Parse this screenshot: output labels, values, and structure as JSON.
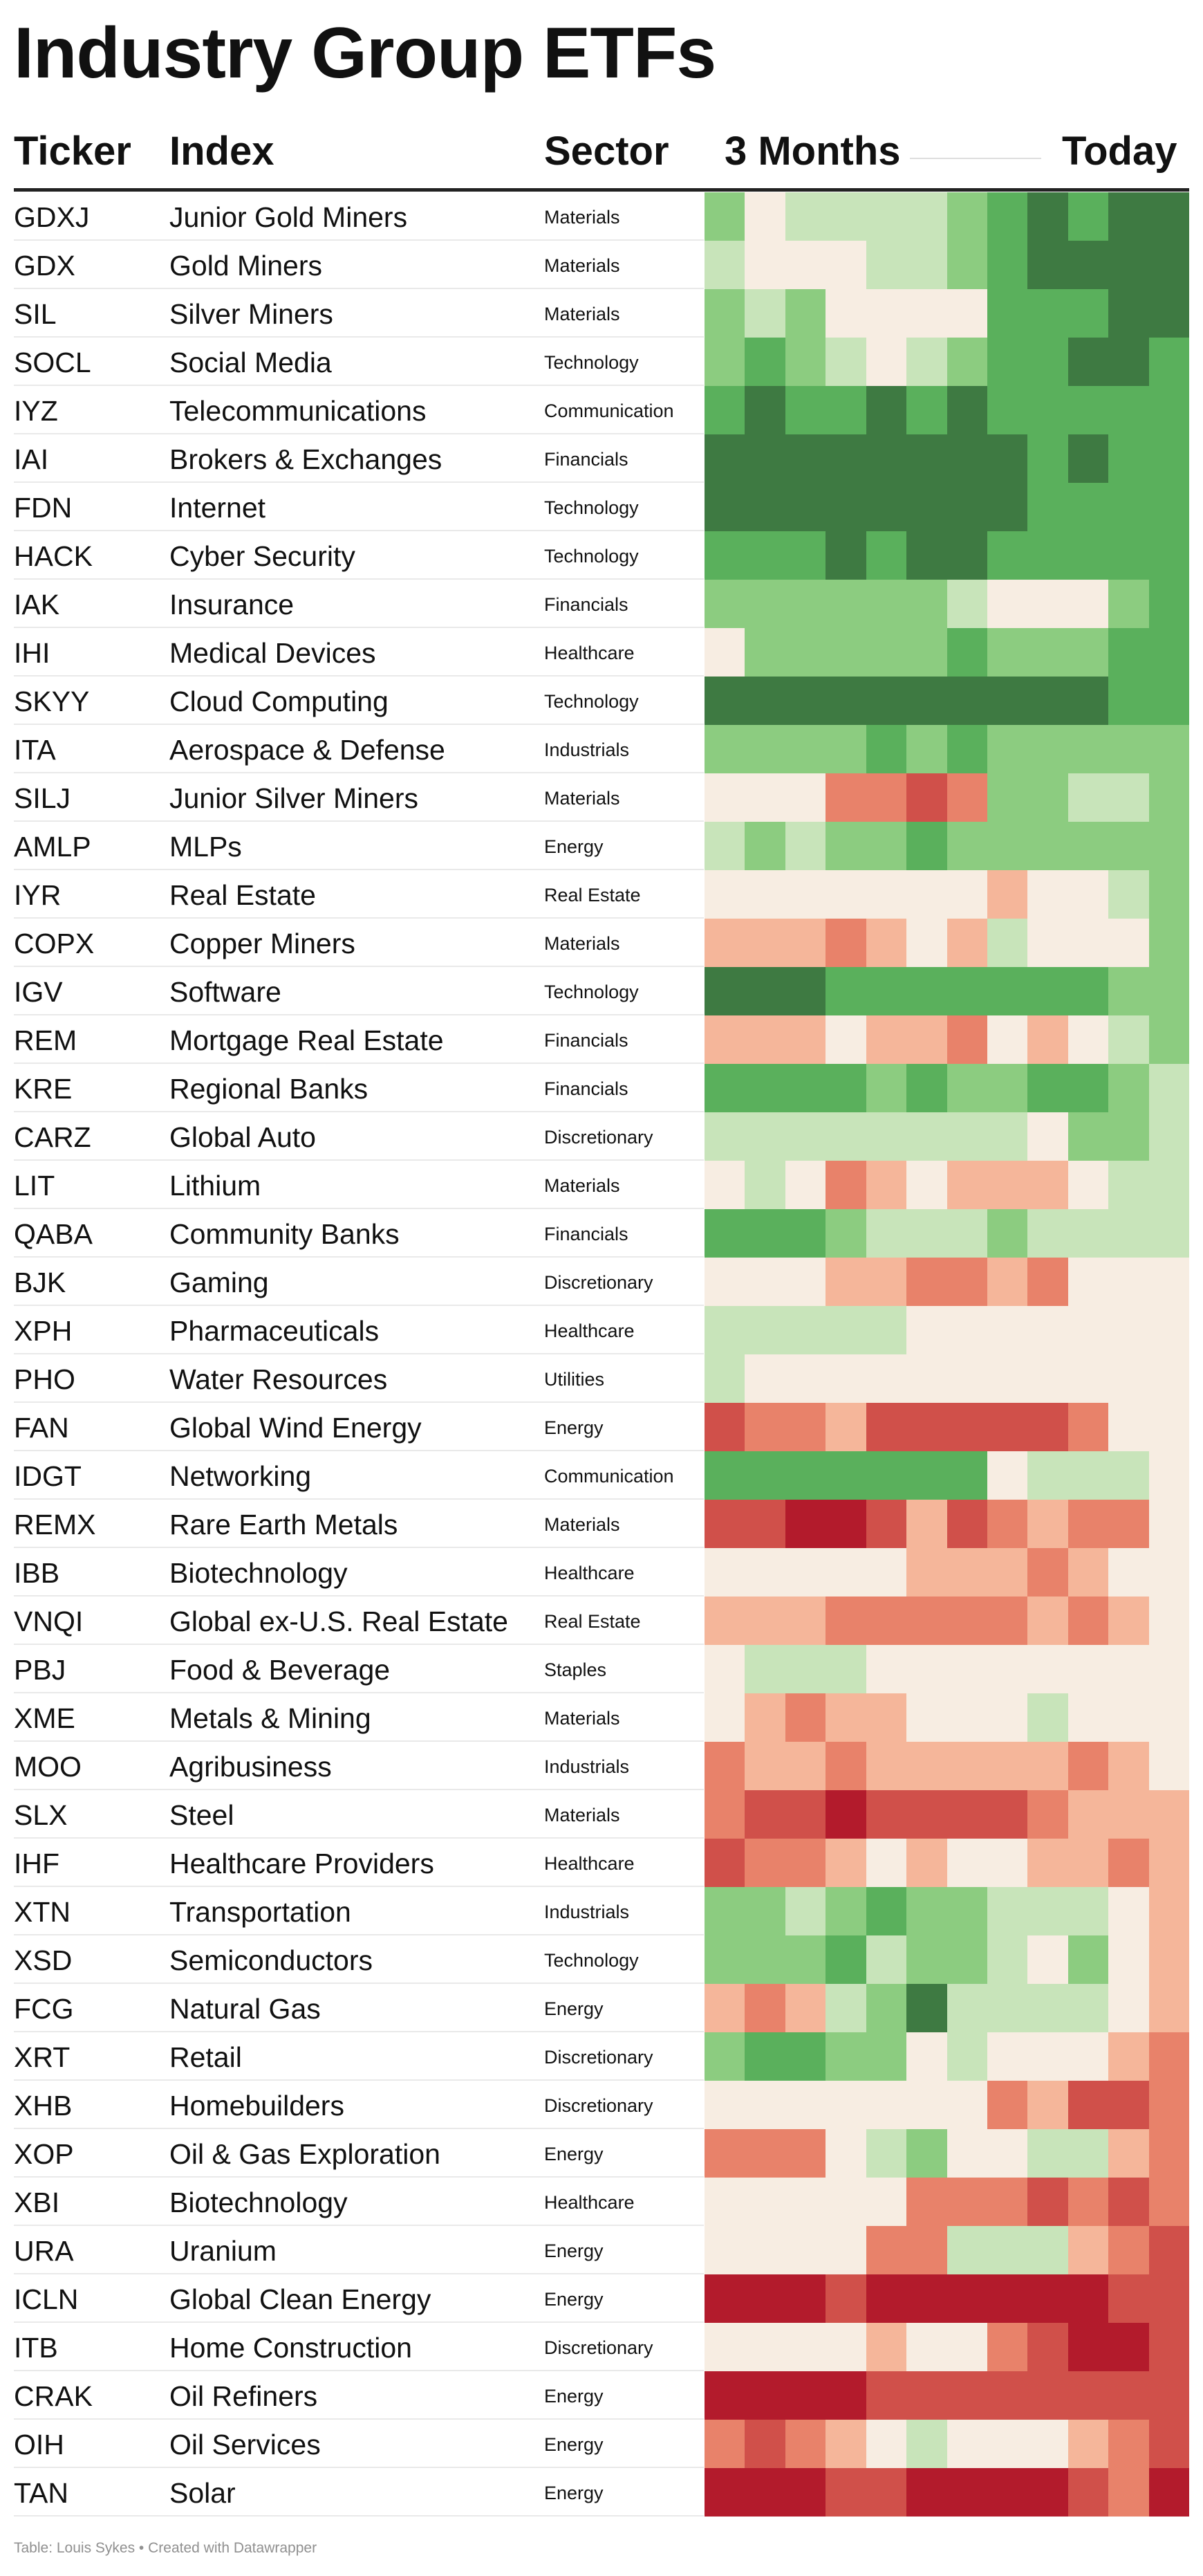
{
  "title": "Industry Group ETFs",
  "header": {
    "ticker": "Ticker",
    "index": "Index",
    "sector": "Sector",
    "from": "3 Months",
    "to": "Today"
  },
  "footer": "Table: Louis Sykes • Created with Datawrapper",
  "colors": {
    "scale": {
      "-4": "#b31b2c",
      "-3": "#d0504a",
      "-2": "#e8826a",
      "-1": "#f5b69a",
      "0": "#f7ede2",
      "1": "#c8e4ba",
      "2": "#8ccc80",
      "3": "#5ab05c",
      "4": "#3e7a42"
    }
  },
  "chart_data": {
    "type": "heatmap",
    "columns": [
      "Ticker",
      "Index",
      "Sector",
      "3 Months",
      "Today"
    ],
    "rows": [
      {
        "ticker": "GDXJ",
        "index": "Junior Gold Miners",
        "sector": "Materials",
        "cells": [
          2,
          0,
          1,
          1,
          1,
          1,
          2,
          3,
          4,
          3,
          4,
          4
        ]
      },
      {
        "ticker": "GDX",
        "index": "Gold Miners",
        "sector": "Materials",
        "cells": [
          1,
          0,
          0,
          0,
          1,
          1,
          2,
          3,
          4,
          4,
          4,
          4
        ]
      },
      {
        "ticker": "SIL",
        "index": "Silver Miners",
        "sector": "Materials",
        "cells": [
          2,
          1,
          2,
          0,
          0,
          0,
          0,
          3,
          3,
          3,
          4,
          4
        ]
      },
      {
        "ticker": "SOCL",
        "index": "Social Media",
        "sector": "Technology",
        "cells": [
          2,
          3,
          2,
          1,
          0,
          1,
          2,
          3,
          3,
          4,
          4,
          3
        ]
      },
      {
        "ticker": "IYZ",
        "index": "Telecommunications",
        "sector": "Communication",
        "cells": [
          3,
          4,
          3,
          3,
          4,
          3,
          4,
          3,
          3,
          3,
          3,
          3
        ]
      },
      {
        "ticker": "IAI",
        "index": "Brokers & Exchanges",
        "sector": "Financials",
        "cells": [
          4,
          4,
          4,
          4,
          4,
          4,
          4,
          4,
          3,
          4,
          3,
          3
        ]
      },
      {
        "ticker": "FDN",
        "index": "Internet",
        "sector": "Technology",
        "cells": [
          4,
          4,
          4,
          4,
          4,
          4,
          4,
          4,
          3,
          3,
          3,
          3
        ]
      },
      {
        "ticker": "HACK",
        "index": "Cyber Security",
        "sector": "Technology",
        "cells": [
          3,
          3,
          3,
          4,
          3,
          4,
          4,
          3,
          3,
          3,
          3,
          3
        ]
      },
      {
        "ticker": "IAK",
        "index": "Insurance",
        "sector": "Financials",
        "cells": [
          2,
          2,
          2,
          2,
          2,
          2,
          1,
          0,
          0,
          0,
          2,
          3
        ]
      },
      {
        "ticker": "IHI",
        "index": "Medical Devices",
        "sector": "Healthcare",
        "cells": [
          0,
          2,
          2,
          2,
          2,
          2,
          3,
          2,
          2,
          2,
          3,
          3
        ]
      },
      {
        "ticker": "SKYY",
        "index": "Cloud Computing",
        "sector": "Technology",
        "cells": [
          4,
          4,
          4,
          4,
          4,
          4,
          4,
          4,
          4,
          4,
          3,
          3
        ]
      },
      {
        "ticker": "ITA",
        "index": "Aerospace & Defense",
        "sector": "Industrials",
        "cells": [
          2,
          2,
          2,
          2,
          3,
          2,
          3,
          2,
          2,
          2,
          2,
          2
        ]
      },
      {
        "ticker": "SILJ",
        "index": "Junior Silver Miners",
        "sector": "Materials",
        "cells": [
          0,
          0,
          0,
          -2,
          -2,
          -3,
          -2,
          2,
          2,
          1,
          1,
          2
        ]
      },
      {
        "ticker": "AMLP",
        "index": "MLPs",
        "sector": "Energy",
        "cells": [
          1,
          2,
          1,
          2,
          2,
          3,
          2,
          2,
          2,
          2,
          2,
          2
        ]
      },
      {
        "ticker": "IYR",
        "index": "Real Estate",
        "sector": "Real Estate",
        "cells": [
          0,
          0,
          0,
          0,
          0,
          0,
          0,
          -1,
          0,
          0,
          1,
          2
        ]
      },
      {
        "ticker": "COPX",
        "index": "Copper Miners",
        "sector": "Materials",
        "cells": [
          -1,
          -1,
          -1,
          -2,
          -1,
          0,
          -1,
          1,
          0,
          0,
          0,
          2
        ]
      },
      {
        "ticker": "IGV",
        "index": "Software",
        "sector": "Technology",
        "cells": [
          4,
          4,
          4,
          3,
          3,
          3,
          3,
          3,
          3,
          3,
          2,
          2
        ]
      },
      {
        "ticker": "REM",
        "index": "Mortgage Real Estate",
        "sector": "Financials",
        "cells": [
          -1,
          -1,
          -1,
          0,
          -1,
          -1,
          -2,
          0,
          -1,
          0,
          1,
          2
        ]
      },
      {
        "ticker": "KRE",
        "index": "Regional Banks",
        "sector": "Financials",
        "cells": [
          3,
          3,
          3,
          3,
          2,
          3,
          2,
          2,
          3,
          3,
          2,
          1
        ]
      },
      {
        "ticker": "CARZ",
        "index": "Global Auto",
        "sector": "Discretionary",
        "cells": [
          1,
          1,
          1,
          1,
          1,
          1,
          1,
          1,
          0,
          2,
          2,
          1
        ]
      },
      {
        "ticker": "LIT",
        "index": "Lithium",
        "sector": "Materials",
        "cells": [
          0,
          1,
          0,
          -2,
          -1,
          0,
          -1,
          -1,
          -1,
          0,
          1,
          1
        ]
      },
      {
        "ticker": "QABA",
        "index": "Community Banks",
        "sector": "Financials",
        "cells": [
          3,
          3,
          3,
          2,
          1,
          1,
          1,
          2,
          1,
          1,
          1,
          1
        ]
      },
      {
        "ticker": "BJK",
        "index": "Gaming",
        "sector": "Discretionary",
        "cells": [
          0,
          0,
          0,
          -1,
          -1,
          -2,
          -2,
          -1,
          -2,
          0,
          0,
          0
        ]
      },
      {
        "ticker": "XPH",
        "index": "Pharmaceuticals",
        "sector": "Healthcare",
        "cells": [
          1,
          1,
          1,
          1,
          1,
          0,
          0,
          0,
          0,
          0,
          0,
          0
        ]
      },
      {
        "ticker": "PHO",
        "index": "Water Resources",
        "sector": "Utilities",
        "cells": [
          1,
          0,
          0,
          0,
          0,
          0,
          0,
          0,
          0,
          0,
          0,
          0
        ]
      },
      {
        "ticker": "FAN",
        "index": "Global Wind Energy",
        "sector": "Energy",
        "cells": [
          -3,
          -2,
          -2,
          -1,
          -3,
          -3,
          -3,
          -3,
          -3,
          -2,
          0,
          0
        ]
      },
      {
        "ticker": "IDGT",
        "index": "Networking",
        "sector": "Communication",
        "cells": [
          3,
          3,
          3,
          3,
          3,
          3,
          3,
          0,
          1,
          1,
          1,
          0
        ]
      },
      {
        "ticker": "REMX",
        "index": "Rare Earth Metals",
        "sector": "Materials",
        "cells": [
          -3,
          -3,
          -4,
          -4,
          -3,
          -1,
          -3,
          -2,
          -1,
          -2,
          -2,
          0
        ]
      },
      {
        "ticker": "IBB",
        "index": "Biotechnology",
        "sector": "Healthcare",
        "cells": [
          0,
          0,
          0,
          0,
          0,
          -1,
          -1,
          -1,
          -2,
          -1,
          0,
          0
        ]
      },
      {
        "ticker": "VNQI",
        "index": "Global ex-U.S. Real Estate",
        "sector": "Real Estate",
        "cells": [
          -1,
          -1,
          -1,
          -2,
          -2,
          -2,
          -2,
          -2,
          -1,
          -2,
          -1,
          0
        ]
      },
      {
        "ticker": "PBJ",
        "index": "Food & Beverage",
        "sector": "Staples",
        "cells": [
          0,
          1,
          1,
          1,
          0,
          0,
          0,
          0,
          0,
          0,
          0,
          0
        ]
      },
      {
        "ticker": "XME",
        "index": "Metals & Mining",
        "sector": "Materials",
        "cells": [
          0,
          -1,
          -2,
          -1,
          -1,
          0,
          0,
          0,
          1,
          0,
          0,
          0
        ]
      },
      {
        "ticker": "MOO",
        "index": "Agribusiness",
        "sector": "Industrials",
        "cells": [
          -2,
          -1,
          -1,
          -2,
          -1,
          -1,
          -1,
          -1,
          -1,
          -2,
          -1,
          0
        ]
      },
      {
        "ticker": "SLX",
        "index": "Steel",
        "sector": "Materials",
        "cells": [
          -2,
          -3,
          -3,
          -4,
          -3,
          -3,
          -3,
          -3,
          -2,
          -1,
          -1,
          -1
        ]
      },
      {
        "ticker": "IHF",
        "index": "Healthcare Providers",
        "sector": "Healthcare",
        "cells": [
          -3,
          -2,
          -2,
          -1,
          0,
          -1,
          0,
          0,
          -1,
          -1,
          -2,
          -1
        ]
      },
      {
        "ticker": "XTN",
        "index": "Transportation",
        "sector": "Industrials",
        "cells": [
          2,
          2,
          1,
          2,
          3,
          2,
          2,
          1,
          1,
          1,
          0,
          -1
        ]
      },
      {
        "ticker": "XSD",
        "index": "Semiconductors",
        "sector": "Technology",
        "cells": [
          2,
          2,
          2,
          3,
          1,
          2,
          2,
          1,
          0,
          2,
          0,
          -1
        ]
      },
      {
        "ticker": "FCG",
        "index": "Natural Gas",
        "sector": "Energy",
        "cells": [
          -1,
          -2,
          -1,
          1,
          2,
          4,
          1,
          1,
          1,
          1,
          0,
          -1
        ]
      },
      {
        "ticker": "XRT",
        "index": "Retail",
        "sector": "Discretionary",
        "cells": [
          2,
          3,
          3,
          2,
          2,
          0,
          1,
          0,
          0,
          0,
          -1,
          -2
        ]
      },
      {
        "ticker": "XHB",
        "index": "Homebuilders",
        "sector": "Discretionary",
        "cells": [
          0,
          0,
          0,
          0,
          0,
          0,
          0,
          -2,
          -1,
          -3,
          -3,
          -2
        ]
      },
      {
        "ticker": "XOP",
        "index": "Oil & Gas Exploration",
        "sector": "Energy",
        "cells": [
          -2,
          -2,
          -2,
          0,
          1,
          2,
          0,
          0,
          1,
          1,
          -1,
          -2
        ]
      },
      {
        "ticker": "XBI",
        "index": "Biotechnology",
        "sector": "Healthcare",
        "cells": [
          0,
          0,
          0,
          0,
          0,
          -2,
          -2,
          -2,
          -3,
          -2,
          -3,
          -2
        ]
      },
      {
        "ticker": "URA",
        "index": "Uranium",
        "sector": "Energy",
        "cells": [
          0,
          0,
          0,
          0,
          -2,
          -2,
          1,
          1,
          1,
          -1,
          -2,
          -3
        ]
      },
      {
        "ticker": "ICLN",
        "index": "Global Clean Energy",
        "sector": "Energy",
        "cells": [
          -4,
          -4,
          -4,
          -3,
          -4,
          -4,
          -4,
          -4,
          -4,
          -4,
          -3,
          -3
        ]
      },
      {
        "ticker": "ITB",
        "index": "Home Construction",
        "sector": "Discretionary",
        "cells": [
          0,
          0,
          0,
          0,
          -1,
          0,
          0,
          -2,
          -3,
          -4,
          -4,
          -3
        ]
      },
      {
        "ticker": "CRAK",
        "index": "Oil Refiners",
        "sector": "Energy",
        "cells": [
          -4,
          -4,
          -4,
          -4,
          -3,
          -3,
          -3,
          -3,
          -3,
          -3,
          -3,
          -3
        ]
      },
      {
        "ticker": "OIH",
        "index": "Oil Services",
        "sector": "Energy",
        "cells": [
          -2,
          -3,
          -2,
          -1,
          0,
          1,
          0,
          0,
          0,
          -1,
          -2,
          -3
        ]
      },
      {
        "ticker": "TAN",
        "index": "Solar",
        "sector": "Energy",
        "cells": [
          -4,
          -4,
          -4,
          -3,
          -3,
          -4,
          -4,
          -4,
          -4,
          -3,
          -2,
          -4
        ]
      }
    ]
  }
}
